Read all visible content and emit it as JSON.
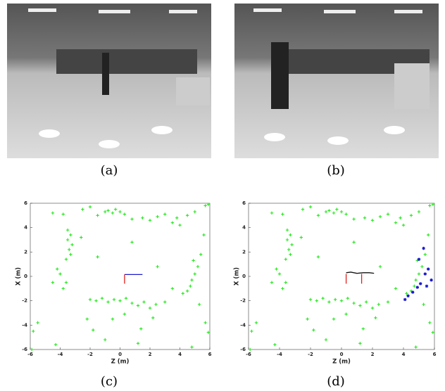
{
  "figures": [
    {
      "caption": "(a)"
    },
    {
      "caption": "(b)"
    }
  ],
  "chart_data": [
    {
      "type": "scatter",
      "caption": "(c)",
      "x_label": "Z (m)",
      "y_label": "X (m)",
      "xlim": [
        -6,
        6
      ],
      "ylim": [
        -6,
        6
      ],
      "xticks": [
        -6,
        -4,
        -2,
        0,
        2,
        4,
        6
      ],
      "yticks": [
        -6,
        -4,
        -2,
        0,
        2,
        4,
        6
      ],
      "series": [
        {
          "color": "#22e81a",
          "marker": "+",
          "x": [
            -4.5,
            -3.8,
            -2.5,
            -2,
            -1.5,
            -1,
            -0.8,
            -0.5,
            -0.3,
            0,
            0.3,
            0.8,
            1.5,
            2,
            2.5,
            3,
            3.5,
            3.8,
            4,
            4.5,
            5,
            5.7,
            -3.5,
            -3.3,
            -3.5,
            -3.2,
            -3.4,
            -3.3,
            -3.6,
            -4.2,
            -4,
            -3.6,
            -3.8,
            -4.5,
            -2.6,
            -1.5,
            -2,
            -1.6,
            -1.2,
            -0.8,
            -0.4,
            0,
            0.4,
            0.8,
            1.2,
            1.6,
            2,
            2.4,
            3,
            -2.2,
            -1.8,
            -1,
            0.3,
            1.4,
            2.2,
            1.2,
            -0.5,
            4.2,
            4.5,
            4.7,
            4.8,
            5,
            5.2,
            4.9,
            5.4,
            5.6,
            5.9,
            5.3,
            5.7,
            5.9,
            4.8,
            -5.8,
            -5.5,
            -5.9,
            -4.3,
            3.5,
            2.5,
            0.8
          ],
          "y": [
            5.2,
            5.1,
            5.5,
            5.7,
            5,
            5.3,
            5.4,
            5.2,
            5.5,
            5.3,
            5.1,
            4.7,
            4.8,
            4.6,
            4.9,
            5.1,
            4.4,
            4.8,
            4.2,
            5,
            5.3,
            5.8,
            3.8,
            3.4,
            3,
            2.6,
            2.2,
            1.8,
            1.4,
            0.6,
            0.2,
            -0.5,
            -1,
            -0.5,
            3.2,
            1.6,
            -1.9,
            -2,
            -1.8,
            -2.1,
            -1.9,
            -2,
            -1.8,
            -2.2,
            -2.4,
            -2.1,
            -2.6,
            -2.3,
            -2.1,
            -3.5,
            -4.4,
            -5.2,
            -3.1,
            -4.3,
            -3.4,
            -5.5,
            -3.5,
            -1.4,
            -1.2,
            -0.8,
            -0.3,
            0.2,
            0.8,
            1.3,
            1.8,
            3.4,
            5.9,
            -2.3,
            -3.8,
            -4.6,
            -5.8,
            -4.5,
            -3.8,
            -6,
            -5.6,
            -1,
            0.8,
            2.8
          ]
        },
        {
          "color": "#1a1acc",
          "mode": "line",
          "x": [
            0.3,
            1.5
          ],
          "y": [
            0.15,
            0.15
          ]
        },
        {
          "color": "#e0201a",
          "mode": "line",
          "x": [
            0.3,
            0.3
          ],
          "y": [
            0.15,
            -0.6
          ]
        }
      ]
    },
    {
      "type": "scatter",
      "caption": "(d)",
      "x_label": "Z (m)",
      "y_label": "X (m)",
      "xlim": [
        -6,
        6
      ],
      "ylim": [
        -6,
        6
      ],
      "xticks": [
        -6,
        -4,
        -2,
        0,
        2,
        4,
        6
      ],
      "yticks": [
        -6,
        -4,
        -2,
        0,
        2,
        4,
        6
      ],
      "series": [
        {
          "color": "#22e81a",
          "marker": "+",
          "x": [
            -4.5,
            -3.8,
            -2.5,
            -2,
            -1.5,
            -1,
            -0.8,
            -0.5,
            -0.3,
            0,
            0.3,
            0.8,
            1.5,
            2,
            2.5,
            3,
            3.5,
            3.8,
            4,
            4.5,
            5,
            5.7,
            -3.5,
            -3.3,
            -3.5,
            -3.2,
            -3.4,
            -3.3,
            -3.6,
            -4.2,
            -4,
            -3.6,
            -3.8,
            -4.5,
            -2.6,
            -1.5,
            -2,
            -1.6,
            -1.2,
            -0.8,
            -0.4,
            0,
            0.4,
            0.8,
            1.2,
            1.6,
            2,
            2.4,
            3,
            -2.2,
            -1.8,
            -1,
            0.3,
            1.4,
            2.2,
            1.2,
            -0.5,
            4.2,
            4.5,
            4.7,
            4.8,
            5,
            5.2,
            4.9,
            5.4,
            5.6,
            5.9,
            5.3,
            5.7,
            5.9,
            4.8,
            -5.8,
            -5.5,
            -5.9,
            -4.3,
            3.5,
            2.5,
            0.8
          ],
          "y": [
            5.2,
            5.1,
            5.5,
            5.7,
            5,
            5.3,
            5.4,
            5.2,
            5.5,
            5.3,
            5.1,
            4.7,
            4.8,
            4.6,
            4.9,
            5.1,
            4.4,
            4.8,
            4.2,
            5,
            5.3,
            5.8,
            3.8,
            3.4,
            3,
            2.6,
            2.2,
            1.8,
            1.4,
            0.6,
            0.2,
            -0.5,
            -1,
            -0.5,
            3.2,
            1.6,
            -1.9,
            -2,
            -1.8,
            -2.1,
            -1.9,
            -2,
            -1.8,
            -2.2,
            -2.4,
            -2.1,
            -2.6,
            -2.3,
            -2.1,
            -3.5,
            -4.4,
            -5.2,
            -3.1,
            -4.3,
            -3.4,
            -5.5,
            -3.5,
            -1.4,
            -1.2,
            -0.8,
            -0.3,
            0.2,
            0.8,
            1.3,
            1.8,
            3.4,
            5.9,
            -2.3,
            -3.8,
            -4.6,
            -5.8,
            -4.5,
            -3.8,
            -6,
            -5.6,
            -1,
            0.8,
            2.8
          ]
        },
        {
          "color": "#1a1acc",
          "marker": "*",
          "x": [
            5.3,
            5,
            5.6,
            5.4,
            5.8,
            5.1,
            4.9,
            4.6,
            4.3,
            4.1,
            5.5
          ],
          "y": [
            2.3,
            1.4,
            0.6,
            0.2,
            -0.3,
            -0.6,
            -0.9,
            -1.3,
            -1.6,
            -1.9,
            -0.8
          ]
        },
        {
          "color": "#111111",
          "mode": "line",
          "x": [
            0.3,
            0.6,
            1,
            1.4,
            1.8,
            2.1
          ],
          "y": [
            0.3,
            0.35,
            0.25,
            0.3,
            0.3,
            0.25
          ]
        },
        {
          "color": "#e0201a",
          "mode": "line",
          "x": [
            0.3,
            0.3
          ],
          "y": [
            0.2,
            -0.6
          ]
        },
        {
          "color": "#e0201a",
          "mode": "line",
          "x": [
            1.3,
            1.3
          ],
          "y": [
            0.2,
            -0.6
          ]
        }
      ]
    }
  ]
}
